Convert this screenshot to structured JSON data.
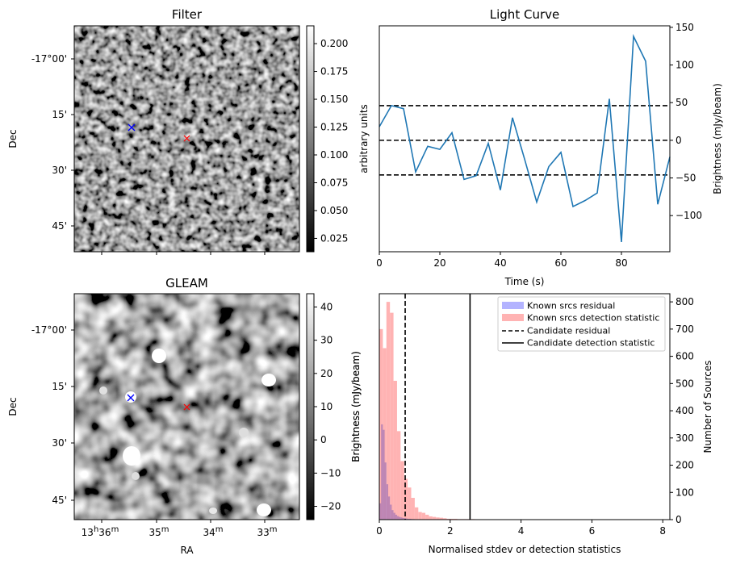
{
  "figure": {
    "panels": {
      "filter": {
        "title": "Filter",
        "ylabel": "Dec",
        "yticks": [
          "-17°00'",
          "15'",
          "30'",
          "45'"
        ],
        "colorbar": {
          "label": "arbitrary units",
          "ticks": [
            "0.200",
            "0.175",
            "0.150",
            "0.125",
            "0.100",
            "0.075",
            "0.050",
            "0.025"
          ],
          "range": [
            0.013,
            0.216
          ]
        },
        "markers": [
          {
            "name": "blue-cross",
            "color": "#0000ff",
            "symbol": "x"
          },
          {
            "name": "red-cross",
            "color": "#ff0000",
            "symbol": "x"
          }
        ]
      },
      "gleam": {
        "title": "GLEAM",
        "ylabel": "Dec",
        "xlabel": "RA",
        "yticks": [
          "-17°00'",
          "15'",
          "30'",
          "45'"
        ],
        "xticks": [
          {
            "main": "13",
            "sup1": "h",
            "mid": "36",
            "sup2": "m"
          },
          {
            "main": "35",
            "sup1": "",
            "mid": "",
            "sup2": "m"
          },
          {
            "main": "34",
            "sup1": "",
            "mid": "",
            "sup2": "m"
          },
          {
            "main": "33",
            "sup1": "",
            "mid": "",
            "sup2": "m"
          }
        ],
        "colorbar": {
          "label": "Brightness (mJy/beam)",
          "ticks": [
            "40",
            "30",
            "20",
            "10",
            "0",
            "−10",
            "−20"
          ],
          "range": [
            -24,
            44
          ]
        },
        "markers": [
          {
            "name": "blue-cross",
            "color": "#0000ff",
            "symbol": "x"
          },
          {
            "name": "red-cross",
            "color": "#ff0000",
            "symbol": "x"
          }
        ]
      }
    }
  },
  "chart_data": [
    {
      "type": "line",
      "title": "Light Curve",
      "xlabel": "Time (s)",
      "ylabel": "Brightness (mJy/beam)",
      "xlim": [
        0,
        96
      ],
      "ylim": [
        -148,
        152
      ],
      "xticks": [
        "0",
        "20",
        "40",
        "60",
        "80"
      ],
      "yticks": [
        "150",
        "100",
        "50",
        "0",
        "−50",
        "−100"
      ],
      "x": [
        0,
        4,
        8,
        12,
        16,
        20,
        24,
        28,
        32,
        36,
        40,
        44,
        48,
        52,
        56,
        60,
        64,
        68,
        72,
        76,
        80,
        84,
        88,
        92,
        96
      ],
      "y": [
        18,
        46,
        42,
        -42,
        -8,
        -12,
        10,
        -52,
        -47,
        -4,
        -66,
        30,
        -25,
        -82,
        -35,
        -16,
        -88,
        -80,
        -70,
        55,
        -135,
        138,
        105,
        -85,
        -22
      ],
      "hlines": [
        {
          "y": 46,
          "style": "dashed"
        },
        {
          "y": 0,
          "style": "dashed"
        },
        {
          "y": -46,
          "style": "dashed"
        }
      ],
      "color": "#1f77b4"
    },
    {
      "type": "bar",
      "xlabel": "Normalised stdev or detection statistics",
      "ylabel": "Number of Sources",
      "xlim": [
        0,
        8.2
      ],
      "ylim": [
        0,
        830
      ],
      "xticks": [
        "0",
        "2",
        "4",
        "6",
        "8"
      ],
      "yticks": [
        "0",
        "100",
        "200",
        "300",
        "400",
        "500",
        "600",
        "700",
        "800"
      ],
      "bin_width": 0.1,
      "series": [
        {
          "name": "Known srcs residual",
          "color": "#b3b3ff",
          "start": 0,
          "width": 0.05,
          "values": [
            60,
            350,
            330,
            210,
            130,
            85,
            55,
            35,
            25,
            18,
            13,
            10,
            8,
            6,
            5,
            4,
            3,
            3,
            2,
            2
          ]
        },
        {
          "name": "Known srcs detection statistic",
          "color": "#ffb3b3",
          "start": 0,
          "width": 0.1,
          "values": [
            700,
            630,
            800,
            760,
            510,
            325,
            215,
            150,
            118,
            80,
            45,
            28,
            25,
            18,
            12,
            10,
            8,
            7,
            5,
            3,
            3,
            3,
            2,
            2,
            2,
            2,
            2,
            1,
            1,
            1,
            1,
            1,
            1,
            1,
            1,
            1,
            1,
            1,
            1,
            1,
            1,
            1,
            1,
            1,
            1,
            1,
            1,
            1,
            1,
            1,
            1,
            1,
            1,
            1,
            1,
            1,
            1,
            1,
            1,
            1,
            1,
            1,
            1,
            1,
            1,
            1,
            1,
            1,
            1,
            1,
            1,
            1,
            1,
            1,
            1,
            1,
            1
          ]
        }
      ],
      "vlines": [
        {
          "name": "Candidate residual",
          "x": 0.73,
          "style": "dashed"
        },
        {
          "name": "Candidate detection statistic",
          "x": 2.56,
          "style": "solid"
        }
      ],
      "legend": "top-right",
      "left_axis_label": "Brightness (mJy/beam)"
    }
  ]
}
